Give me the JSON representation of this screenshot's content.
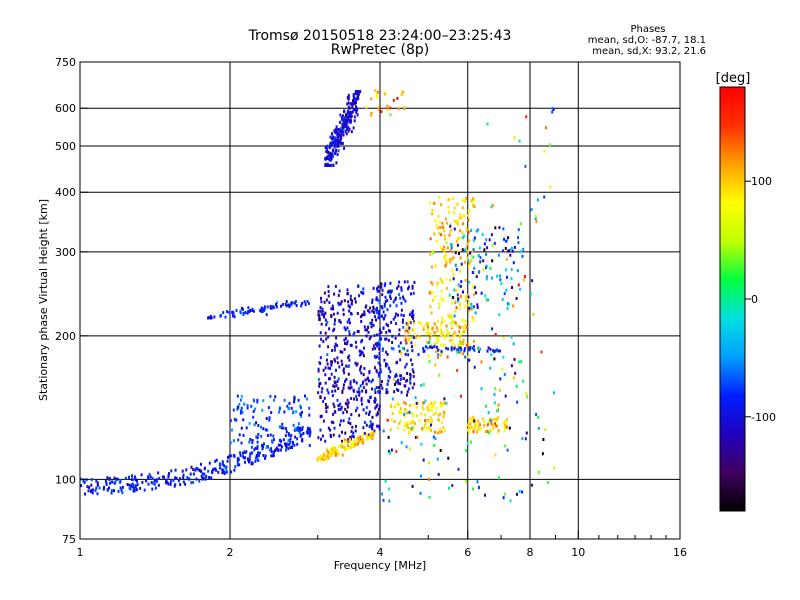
{
  "title_line1": "Tromsø 20150518 23:24:00–23:25:43",
  "title_line2": "RwPretec (8p)",
  "phase_stats": {
    "heading": "Phases",
    "line_o": "mean, sd,O: -87.7, 18.1",
    "line_x": "mean, sd,X:  93.2, 21.6"
  },
  "chart_data": {
    "type": "scatter",
    "xlabel": "Frequency [MHz]",
    "ylabel": "Stationary phase Virtual Height [km]",
    "x_scale": "log",
    "y_scale": "log",
    "xlim": [
      1,
      16
    ],
    "ylim": [
      75,
      750
    ],
    "x_ticks": [
      1,
      2,
      4,
      6,
      8,
      10,
      16
    ],
    "x_tick_labels": [
      "1",
      "2",
      "4",
      "6",
      "8",
      "10",
      "16"
    ],
    "x_minor_ticks": [
      3,
      5,
      7,
      9,
      11,
      12,
      13,
      14,
      15
    ],
    "y_ticks": [
      75,
      100,
      200,
      300,
      400,
      500,
      600,
      750
    ],
    "y_tick_labels": [
      "75",
      "100",
      "200",
      "300",
      "400",
      "500",
      "600",
      "750"
    ],
    "grid": true,
    "colorbar": {
      "label": "[deg]",
      "range": [
        -180,
        180
      ],
      "ticks": [
        100,
        0,
        -100
      ],
      "tick_labels": [
        "100",
        "0",
        "-100"
      ],
      "colors": [
        "#000000",
        "#400060",
        "#2000c0",
        "#0020ff",
        "#00a0ff",
        "#00e0e0",
        "#00ff40",
        "#c0ff00",
        "#ffff00",
        "#ffa000",
        "#ff3000",
        "#ff0000"
      ]
    },
    "series": [
      {
        "x_range": [
          1.0,
          2.9
        ],
        "y_range": [
          93,
          128
        ],
        "trend": "curve",
        "count": 320,
        "phase": -90,
        "phase_sd": 14
      },
      {
        "x_range": [
          1.8,
          2.9
        ],
        "y_range": [
          218,
          236
        ],
        "trend": "rising",
        "count": 80,
        "phase": -85,
        "phase_sd": 12
      },
      {
        "x_range": [
          2.0,
          2.9
        ],
        "y_range": [
          115,
          150
        ],
        "trend": "cloud",
        "count": 120,
        "phase": -75,
        "phase_sd": 15
      },
      {
        "x_range": [
          3.1,
          3.65
        ],
        "y_range": [
          455,
          650
        ],
        "trend": "rising",
        "count": 260,
        "phase": -105,
        "phase_sd": 15
      },
      {
        "x_range": [
          3.0,
          4.0
        ],
        "y_range": [
          120,
          255
        ],
        "trend": "cloud",
        "count": 420,
        "phase": -110,
        "phase_sd": 20
      },
      {
        "x_range": [
          3.9,
          4.7
        ],
        "y_range": [
          150,
          260
        ],
        "trend": "cloud",
        "count": 200,
        "phase": -100,
        "phase_sd": 20
      },
      {
        "x_range": [
          3.0,
          3.9
        ],
        "y_range": [
          110,
          125
        ],
        "trend": "rising",
        "count": 110,
        "phase": 100,
        "phase_sd": 15
      },
      {
        "x_range": [
          4.2,
          5.4
        ],
        "y_range": [
          125,
          145
        ],
        "trend": "cloud",
        "count": 110,
        "phase": 95,
        "phase_sd": 20
      },
      {
        "x_range": [
          5.0,
          6.2
        ],
        "y_range": [
          180,
          390
        ],
        "trend": "cloud",
        "count": 230,
        "phase": 95,
        "phase_sd": 20
      },
      {
        "x_range": [
          4.5,
          6.0
        ],
        "y_range": [
          190,
          215
        ],
        "trend": "cloud",
        "count": 80,
        "phase": 90,
        "phase_sd": 25
      },
      {
        "x_range": [
          6.0,
          7.2
        ],
        "y_range": [
          125,
          135
        ],
        "trend": "cloud",
        "count": 60,
        "phase": 100,
        "phase_sd": 20
      },
      {
        "x_range": [
          4.8,
          7.0
        ],
        "y_range": [
          185,
          190
        ],
        "trend": "flat",
        "count": 50,
        "phase": -95,
        "phase_sd": 20
      },
      {
        "x_range": [
          5.5,
          7.8
        ],
        "y_range": [
          220,
          340
        ],
        "trend": "cloud",
        "count": 120,
        "phase": -70,
        "phase_sd": 50
      },
      {
        "x_range": [
          3.7,
          4.6
        ],
        "y_range": [
          580,
          660
        ],
        "trend": "cloud",
        "count": 25,
        "phase": 110,
        "phase_sd": 30
      },
      {
        "x_range": [
          6.5,
          9.0
        ],
        "y_range": [
          95,
          600
        ],
        "trend": "cloud",
        "count": 60,
        "phase": 20,
        "phase_sd": 100
      },
      {
        "x_range": [
          4.0,
          8.5
        ],
        "y_range": [
          90,
          200
        ],
        "trend": "cloud",
        "count": 120,
        "phase": -20,
        "phase_sd": 100
      }
    ]
  }
}
